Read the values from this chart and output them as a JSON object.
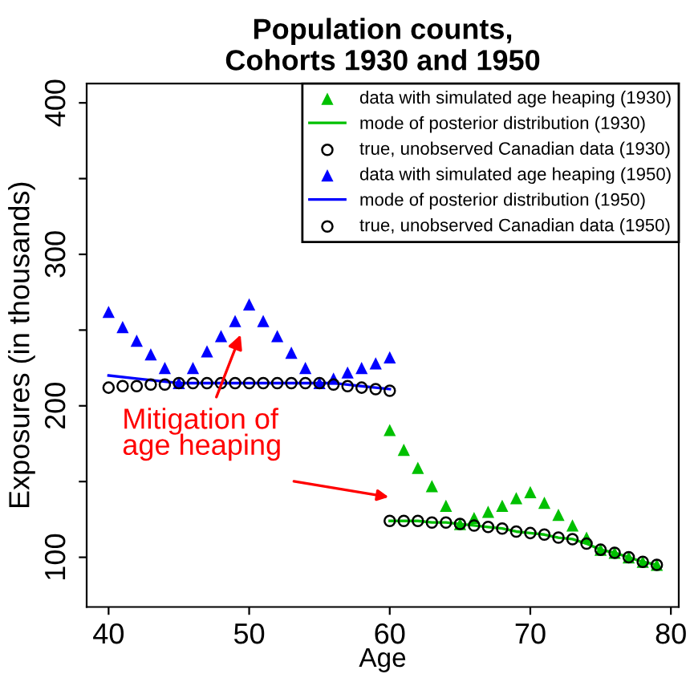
{
  "chart_data": {
    "type": "scatter",
    "title": "Population counts,\nCohorts 1930 and 1950",
    "xlabel": "Age",
    "ylabel": "Exposures (in thousands)",
    "xlim": [
      38.44,
      80.56
    ],
    "ylim": [
      67.2,
      412.8
    ],
    "xticks": [
      40,
      50,
      60,
      70,
      80
    ],
    "yticks": [
      100,
      {
        "value": 150,
        "label": null
      },
      200,
      {
        "value": 250,
        "label": null
      },
      300,
      {
        "value": 350,
        "label": null
      },
      400
    ],
    "grid": false,
    "legend": "top right",
    "annotations": [
      "Mitigation of\nage heaping"
    ],
    "series": [
      {
        "name": "data with simulated age heaping (1930)",
        "marker": "triangle",
        "color": "#00c000",
        "x": [
          60,
          61,
          62,
          63,
          64,
          65,
          66,
          67,
          68,
          69,
          70,
          71,
          72,
          73,
          74,
          75,
          76,
          77,
          78,
          79
        ],
        "values": [
          184,
          171,
          159,
          147,
          134,
          122,
          126,
          130,
          134,
          139,
          143,
          136,
          128,
          121,
          113,
          105,
          103,
          100,
          97,
          95
        ]
      },
      {
        "name": "mode of posterior distribution (1930)",
        "type": "line",
        "marker": "none",
        "color": "#00c000",
        "x": [
          60,
          61,
          62,
          63,
          64,
          65,
          66,
          67,
          68,
          69,
          70,
          71,
          72,
          73,
          74,
          75,
          76,
          77,
          78,
          79
        ],
        "values": [
          124,
          124,
          124,
          123,
          123,
          122,
          121,
          120,
          119,
          117,
          116,
          115,
          113,
          112,
          109,
          105,
          103,
          100,
          97,
          95
        ]
      },
      {
        "name": "true, unobserved Canadian data (1930)",
        "marker": "circle",
        "color": "#000000",
        "x": [
          60,
          61,
          62,
          63,
          64,
          65,
          66,
          67,
          68,
          69,
          70,
          71,
          72,
          73,
          74,
          75,
          76,
          77,
          78,
          79
        ],
        "values": [
          124,
          124,
          124,
          123,
          123,
          122,
          121,
          120,
          119,
          117,
          116,
          115,
          113,
          112,
          109,
          105,
          103,
          100,
          97,
          95
        ]
      },
      {
        "name": "data with simulated age heaping (1950)",
        "marker": "triangle",
        "color": "#0000ff",
        "x": [
          40,
          41,
          42,
          43,
          44,
          45,
          46,
          47,
          48,
          49,
          50,
          51,
          52,
          53,
          54,
          55,
          56,
          57,
          58,
          59,
          60
        ],
        "values": [
          262,
          252,
          243,
          234,
          225,
          215,
          225,
          236,
          246,
          256,
          267,
          256,
          246,
          235,
          225,
          215,
          218,
          222,
          225,
          228,
          232
        ]
      },
      {
        "name": "mode of posterior distribution (1950)",
        "type": "line",
        "marker": "none",
        "color": "#0000ff",
        "x": [
          40,
          42,
          44,
          45,
          46,
          48,
          50,
          52,
          54,
          55,
          56,
          57,
          58,
          59,
          60
        ],
        "values": [
          220,
          218,
          216,
          215,
          215,
          215,
          215,
          215,
          215,
          215,
          215,
          214,
          213,
          212,
          211
        ]
      },
      {
        "name": "true, unobserved Canadian data (1950)",
        "marker": "circle",
        "color": "#000000",
        "x": [
          40,
          41,
          42,
          43,
          44,
          45,
          46,
          47,
          48,
          49,
          50,
          51,
          52,
          53,
          54,
          55,
          56,
          57,
          58,
          59,
          60
        ],
        "values": [
          212,
          213,
          213,
          214,
          214,
          215,
          215,
          215,
          215,
          215,
          215,
          215,
          215,
          215,
          215,
          215,
          214,
          213,
          212,
          211,
          210
        ]
      }
    ]
  }
}
